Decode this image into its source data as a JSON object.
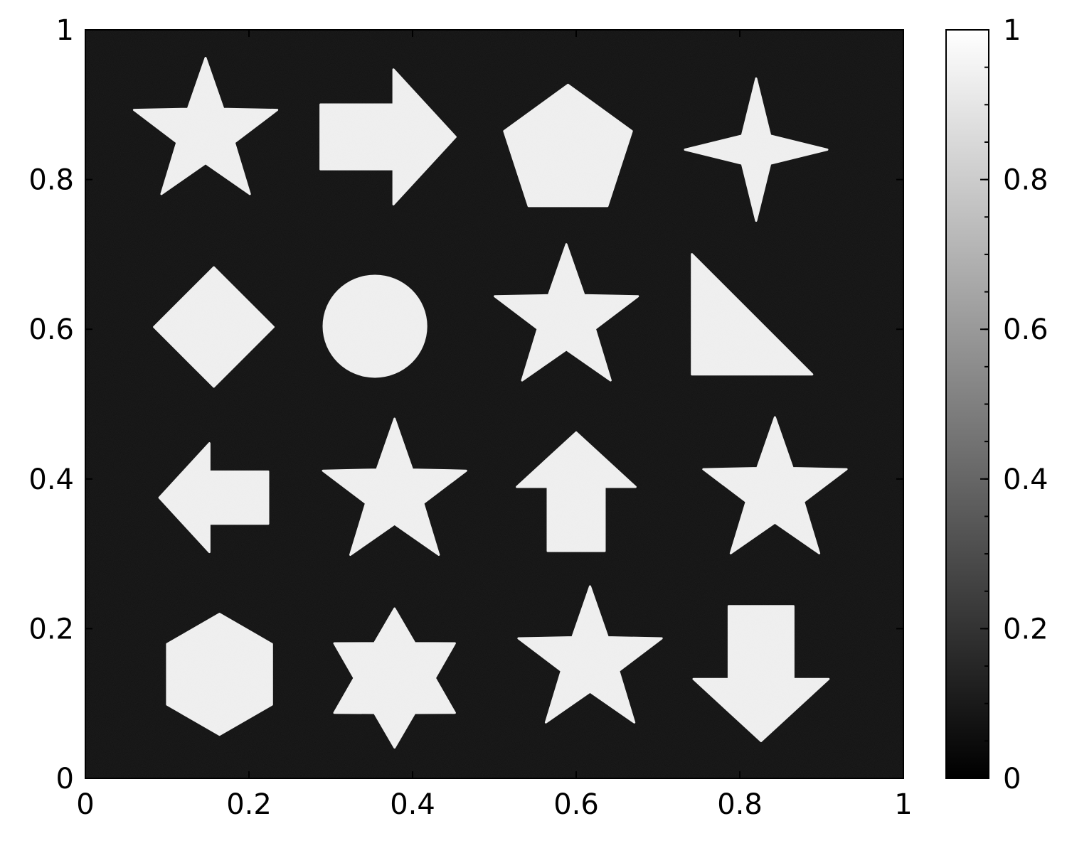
{
  "chart_data": {
    "type": "heatmap",
    "title": "",
    "xlabel": "",
    "ylabel": "",
    "xlim": [
      0,
      1
    ],
    "ylim": [
      0,
      1
    ],
    "x_ticks": [
      "0",
      "0.2",
      "0.4",
      "0.6",
      "0.8",
      "1"
    ],
    "y_ticks": [
      "0",
      "0.2",
      "0.4",
      "0.6",
      "0.8",
      "1"
    ],
    "colormap": "gray",
    "colorbar": {
      "range": [
        0,
        1
      ],
      "ticks": [
        "0",
        "0.2",
        "0.4",
        "0.6",
        "0.8",
        "1"
      ],
      "minor_step": 0.05
    },
    "background_value": 0.05,
    "shape_value": 0.97,
    "colors": {
      "background": "#0d0d0d",
      "shape": "#f2f2f2"
    },
    "shapes": [
      {
        "type": "star5",
        "x": 0.147,
        "y": 0.862,
        "r": 0.092,
        "rotation": 0
      },
      {
        "type": "arrow-right",
        "x": 0.37,
        "y": 0.857,
        "w": 0.165,
        "h": 0.165
      },
      {
        "type": "pentagon",
        "x": 0.59,
        "y": 0.837,
        "r": 0.082,
        "rotation": 0
      },
      {
        "type": "star4",
        "x": 0.82,
        "y": 0.84,
        "r": 0.087,
        "rotation": 0
      },
      {
        "type": "diamond",
        "x": 0.157,
        "y": 0.603,
        "r": 0.073
      },
      {
        "type": "ellipse",
        "x": 0.354,
        "y": 0.604,
        "rx": 0.064,
        "ry": 0.063
      },
      {
        "type": "star5",
        "x": 0.588,
        "y": 0.613,
        "r": 0.092,
        "rotation": 0
      },
      {
        "type": "right-triangle",
        "x": 0.815,
        "y": 0.62,
        "w": 0.147,
        "h": 0.147
      },
      {
        "type": "arrow-left",
        "x": 0.157,
        "y": 0.375,
        "w": 0.133,
        "h": 0.133
      },
      {
        "type": "star5",
        "x": 0.378,
        "y": 0.38,
        "r": 0.092,
        "rotation": 0
      },
      {
        "type": "arrow-up",
        "x": 0.6,
        "y": 0.383,
        "w": 0.145,
        "h": 0.145
      },
      {
        "type": "star5",
        "x": 0.843,
        "y": 0.382,
        "r": 0.092,
        "rotation": 0
      },
      {
        "type": "hexagon",
        "x": 0.164,
        "y": 0.139,
        "r": 0.074
      },
      {
        "type": "star6",
        "x": 0.378,
        "y": 0.134,
        "r": 0.085
      },
      {
        "type": "star5",
        "x": 0.617,
        "y": 0.156,
        "r": 0.092,
        "rotation": 0
      },
      {
        "type": "arrow-down",
        "x": 0.826,
        "y": 0.14,
        "w": 0.165,
        "h": 0.165
      }
    ]
  }
}
